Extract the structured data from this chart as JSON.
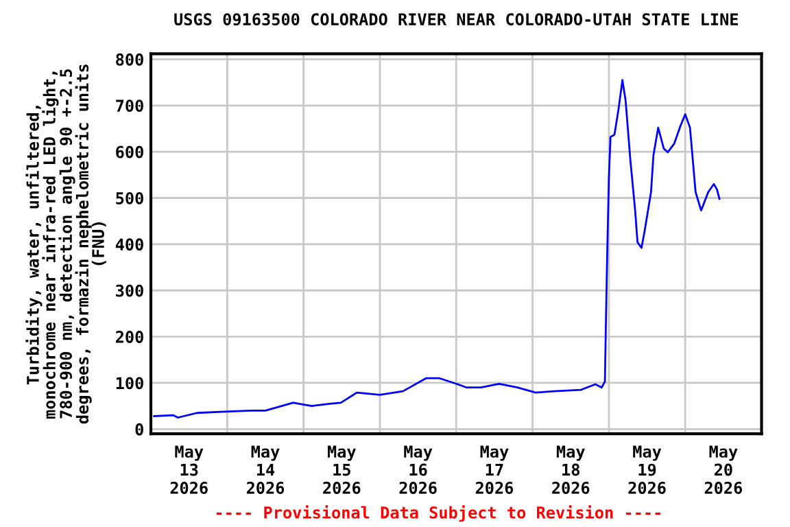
{
  "chart_data": {
    "type": "line",
    "title": "USGS 09163500 COLORADO RIVER NEAR COLORADO-UTAH STATE LINE",
    "ylabel": "Turbidity, water, unfiltered,\nmonochrome near infra-red LED light,\n780-900 nm, detection angle 90 +-2.5\ndegrees, formazin nephelometric units\n(FNU)",
    "annotations": [
      "---- Provisional Data Subject to Revision ----"
    ],
    "x": [
      "2026-05-13T01:00",
      "2026-05-13T07:00",
      "2026-05-13T08:30",
      "2026-05-13T14:30",
      "2026-05-14T00:30",
      "2026-05-14T07:45",
      "2026-05-14T12:00",
      "2026-05-14T20:45",
      "2026-05-15T02:30",
      "2026-05-15T08:15",
      "2026-05-15T11:45",
      "2026-05-15T16:45",
      "2026-05-16T00:00",
      "2026-05-16T07:15",
      "2026-05-16T14:30",
      "2026-05-16T18:45",
      "2026-05-17T00:30",
      "2026-05-17T03:15",
      "2026-05-17T07:45",
      "2026-05-17T13:30",
      "2026-05-17T19:15",
      "2026-05-18T01:00",
      "2026-05-18T06:45",
      "2026-05-18T15:15",
      "2026-05-18T19:45",
      "2026-05-18T21:45",
      "2026-05-18T22:45",
      "2026-05-18T23:00",
      "2026-05-18T23:30",
      "2026-05-19T00:00",
      "2026-05-19T00:30",
      "2026-05-19T01:45",
      "2026-05-19T03:00",
      "2026-05-19T04:15",
      "2026-05-19T05:15",
      "2026-05-19T06:45",
      "2026-05-19T08:15",
      "2026-05-19T09:00",
      "2026-05-19T10:15",
      "2026-05-19T11:15",
      "2026-05-19T13:15",
      "2026-05-19T14:00",
      "2026-05-19T15:30",
      "2026-05-19T17:15",
      "2026-05-19T18:30",
      "2026-05-19T20:30",
      "2026-05-19T22:30",
      "2026-05-20T00:00",
      "2026-05-20T01:30",
      "2026-05-20T03:15",
      "2026-05-20T05:00",
      "2026-05-20T07:15",
      "2026-05-20T09:00",
      "2026-05-20T10:00",
      "2026-05-20T10:45"
    ],
    "series": [
      {
        "color": "#0000ff",
        "values": [
          28,
          30,
          25,
          35,
          38,
          40,
          40,
          57,
          50,
          55,
          57,
          79,
          74,
          82,
          110,
          110,
          97,
          90,
          90,
          98,
          90,
          79,
          82,
          85,
          97,
          90,
          103,
          206,
          389,
          543,
          632,
          637,
          691,
          755,
          711,
          582,
          473,
          404,
          392,
          429,
          513,
          592,
          652,
          607,
          599,
          617,
          656,
          681,
          652,
          513,
          473,
          513,
          530,
          518,
          498
        ]
      }
    ],
    "xlim": [
      "2026-05-13T00:00",
      "2026-05-21T00:00"
    ],
    "xticks": [
      {
        "value": "2026-05-14T00:00",
        "label": null
      },
      {
        "value": "2026-05-15T00:00",
        "label": null
      },
      {
        "value": "2026-05-16T00:00",
        "label": null
      },
      {
        "value": "2026-05-17T00:00",
        "label": null
      },
      {
        "value": "2026-05-18T00:00",
        "label": null
      },
      {
        "value": "2026-05-19T00:00",
        "label": null
      },
      {
        "value": "2026-05-20T00:00",
        "label": null
      },
      {
        "value": "2026-05-13T12:00",
        "label": "May\n13\n2026"
      },
      {
        "value": "2026-05-14T12:00",
        "label": "May\n14\n2026"
      },
      {
        "value": "2026-05-15T12:00",
        "label": "May\n15\n2026"
      },
      {
        "value": "2026-05-16T12:00",
        "label": "May\n16\n2026"
      },
      {
        "value": "2026-05-17T12:00",
        "label": "May\n17\n2026"
      },
      {
        "value": "2026-05-18T12:00",
        "label": "May\n18\n2026"
      },
      {
        "value": "2026-05-19T12:00",
        "label": "May\n19\n2026"
      },
      {
        "value": "2026-05-20T12:00",
        "label": "May\n20\n2026"
      }
    ],
    "ylim": [
      -10,
      812
    ],
    "yticks": [
      0,
      100,
      200,
      300,
      400,
      500,
      600,
      700,
      800
    ],
    "grid": true,
    "marker": "none",
    "line_style": "solid",
    "legend": false
  }
}
